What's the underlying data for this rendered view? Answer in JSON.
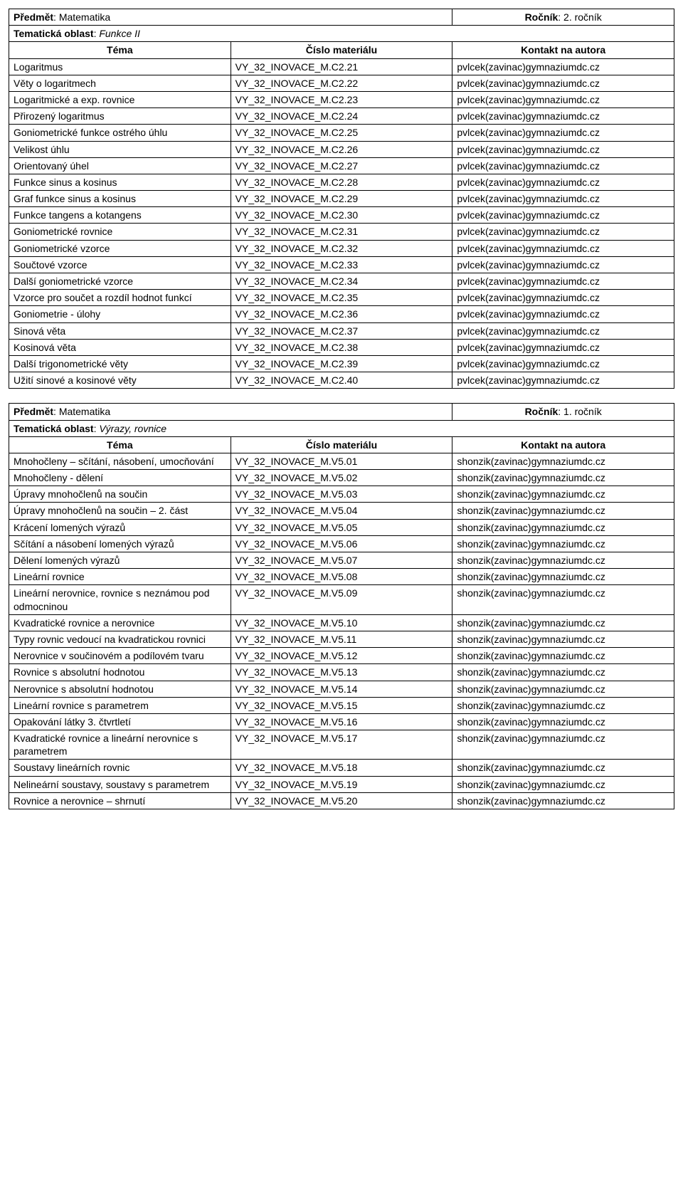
{
  "tables": [
    {
      "predmet_label": "Předmět",
      "predmet_value": "Matematika",
      "rocnik_label": "Ročník",
      "rocnik_value": "2. ročník",
      "oblast_label": "Tematická oblast",
      "oblast_value": "Funkce II",
      "header_tema": "Téma",
      "header_cislo": "Číslo materiálu",
      "header_kontakt": "Kontakt na autora",
      "rows": [
        {
          "tema": "Logaritmus",
          "cislo": "VY_32_INOVACE_M.C2.21",
          "kontakt": "pvlcek(zavinac)gymnaziumdc.cz"
        },
        {
          "tema": "Věty o logaritmech",
          "cislo": "VY_32_INOVACE_M.C2.22",
          "kontakt": "pvlcek(zavinac)gymnaziumdc.cz"
        },
        {
          "tema": "Logaritmické a exp. rovnice",
          "cislo": "VY_32_INOVACE_M.C2.23",
          "kontakt": "pvlcek(zavinac)gymnaziumdc.cz"
        },
        {
          "tema": "Přirozený logaritmus",
          "cislo": "VY_32_INOVACE_M.C2.24",
          "kontakt": "pvlcek(zavinac)gymnaziumdc.cz"
        },
        {
          "tema": "Goniometrické funkce ostrého úhlu",
          "cislo": "VY_32_INOVACE_M.C2.25",
          "kontakt": "pvlcek(zavinac)gymnaziumdc.cz"
        },
        {
          "tema": "Velikost úhlu",
          "cislo": "VY_32_INOVACE_M.C2.26",
          "kontakt": "pvlcek(zavinac)gymnaziumdc.cz"
        },
        {
          "tema": "Orientovaný úhel",
          "cislo": "VY_32_INOVACE_M.C2.27",
          "kontakt": "pvlcek(zavinac)gymnaziumdc.cz"
        },
        {
          "tema": "Funkce sinus a kosinus",
          "cislo": "VY_32_INOVACE_M.C2.28",
          "kontakt": "pvlcek(zavinac)gymnaziumdc.cz"
        },
        {
          "tema": "Graf funkce sinus a kosinus",
          "cislo": "VY_32_INOVACE_M.C2.29",
          "kontakt": "pvlcek(zavinac)gymnaziumdc.cz"
        },
        {
          "tema": "Funkce tangens a kotangens",
          "cislo": "VY_32_INOVACE_M.C2.30",
          "kontakt": "pvlcek(zavinac)gymnaziumdc.cz"
        },
        {
          "tema": "Goniometrické rovnice",
          "cislo": "VY_32_INOVACE_M.C2.31",
          "kontakt": "pvlcek(zavinac)gymnaziumdc.cz"
        },
        {
          "tema": "Goniometrické vzorce",
          "cislo": "VY_32_INOVACE_M.C2.32",
          "kontakt": "pvlcek(zavinac)gymnaziumdc.cz"
        },
        {
          "tema": "Součtové vzorce",
          "cislo": "VY_32_INOVACE_M.C2.33",
          "kontakt": "pvlcek(zavinac)gymnaziumdc.cz"
        },
        {
          "tema": "Další goniometrické vzorce",
          "cislo": "VY_32_INOVACE_M.C2.34",
          "kontakt": "pvlcek(zavinac)gymnaziumdc.cz"
        },
        {
          "tema": "Vzorce pro součet a rozdíl hodnot funkcí",
          "cislo": "VY_32_INOVACE_M.C2.35",
          "kontakt": "pvlcek(zavinac)gymnaziumdc.cz"
        },
        {
          "tema": "Goniometrie - úlohy",
          "cislo": "VY_32_INOVACE_M.C2.36",
          "kontakt": "pvlcek(zavinac)gymnaziumdc.cz"
        },
        {
          "tema": "Sinová věta",
          "cislo": "VY_32_INOVACE_M.C2.37",
          "kontakt": "pvlcek(zavinac)gymnaziumdc.cz"
        },
        {
          "tema": "Kosinová věta",
          "cislo": "VY_32_INOVACE_M.C2.38",
          "kontakt": "pvlcek(zavinac)gymnaziumdc.cz"
        },
        {
          "tema": "Další trigonometrické věty",
          "cislo": "VY_32_INOVACE_M.C2.39",
          "kontakt": "pvlcek(zavinac)gymnaziumdc.cz"
        },
        {
          "tema": "Užití sinové a kosinové věty",
          "cislo": "VY_32_INOVACE_M.C2.40",
          "kontakt": "pvlcek(zavinac)gymnaziumdc.cz"
        }
      ]
    },
    {
      "predmet_label": "Předmět",
      "predmet_value": "Matematika",
      "rocnik_label": "Ročník",
      "rocnik_value": "1. ročník",
      "oblast_label": "Tematická oblast",
      "oblast_value": "Výrazy, rovnice",
      "header_tema": "Téma",
      "header_cislo": "Číslo materiálu",
      "header_kontakt": "Kontakt na autora",
      "rows": [
        {
          "tema": "Mnohočleny – sčítání, násobení, umocňování",
          "cislo": "VY_32_INOVACE_M.V5.01",
          "kontakt": "shonzik(zavinac)gymnaziumdc.cz"
        },
        {
          "tema": "Mnohočleny - dělení",
          "cislo": "VY_32_INOVACE_M.V5.02",
          "kontakt": "shonzik(zavinac)gymnaziumdc.cz"
        },
        {
          "tema": "Úpravy mnohočlenů na součin",
          "cislo": "VY_32_INOVACE_M.V5.03",
          "kontakt": "shonzik(zavinac)gymnaziumdc.cz"
        },
        {
          "tema": "Úpravy mnohočlenů na součin – 2. část",
          "cislo": "VY_32_INOVACE_M.V5.04",
          "kontakt": "shonzik(zavinac)gymnaziumdc.cz"
        },
        {
          "tema": "Krácení lomených výrazů",
          "cislo": "VY_32_INOVACE_M.V5.05",
          "kontakt": "shonzik(zavinac)gymnaziumdc.cz"
        },
        {
          "tema": "Sčítání a násobení lomených výrazů",
          "cislo": "VY_32_INOVACE_M.V5.06",
          "kontakt": "shonzik(zavinac)gymnaziumdc.cz"
        },
        {
          "tema": "Dělení lomených výrazů",
          "cislo": "VY_32_INOVACE_M.V5.07",
          "kontakt": "shonzik(zavinac)gymnaziumdc.cz"
        },
        {
          "tema": "Lineární rovnice",
          "cislo": "VY_32_INOVACE_M.V5.08",
          "kontakt": "shonzik(zavinac)gymnaziumdc.cz"
        },
        {
          "tema": "Lineární nerovnice, rovnice s neznámou pod odmocninou",
          "cislo": "VY_32_INOVACE_M.V5.09",
          "kontakt": "shonzik(zavinac)gymnaziumdc.cz"
        },
        {
          "tema": "Kvadratické rovnice a nerovnice",
          "cislo": "VY_32_INOVACE_M.V5.10",
          "kontakt": "shonzik(zavinac)gymnaziumdc.cz"
        },
        {
          "tema": "Typy rovnic vedoucí na kvadratickou rovnici",
          "cislo": "VY_32_INOVACE_M.V5.11",
          "kontakt": "shonzik(zavinac)gymnaziumdc.cz"
        },
        {
          "tema": "Nerovnice v součinovém a podílovém tvaru",
          "cislo": "VY_32_INOVACE_M.V5.12",
          "kontakt": "shonzik(zavinac)gymnaziumdc.cz"
        },
        {
          "tema": "Rovnice s absolutní hodnotou",
          "cislo": "VY_32_INOVACE_M.V5.13",
          "kontakt": "shonzik(zavinac)gymnaziumdc.cz"
        },
        {
          "tema": "Nerovnice s absolutní hodnotou",
          "cislo": "VY_32_INOVACE_M.V5.14",
          "kontakt": "shonzik(zavinac)gymnaziumdc.cz"
        },
        {
          "tema": "Lineární rovnice s parametrem",
          "cislo": "VY_32_INOVACE_M.V5.15",
          "kontakt": "shonzik(zavinac)gymnaziumdc.cz"
        },
        {
          "tema": "Opakování látky 3. čtvrtletí",
          "cislo": "VY_32_INOVACE_M.V5.16",
          "kontakt": "shonzik(zavinac)gymnaziumdc.cz"
        },
        {
          "tema": "Kvadratické rovnice a lineární nerovnice s parametrem",
          "cislo": "VY_32_INOVACE_M.V5.17",
          "kontakt": "shonzik(zavinac)gymnaziumdc.cz"
        },
        {
          "tema": "Soustavy lineárních rovnic",
          "cislo": "VY_32_INOVACE_M.V5.18",
          "kontakt": "shonzik(zavinac)gymnaziumdc.cz"
        },
        {
          "tema": "Nelineární soustavy, soustavy s parametrem",
          "cislo": "VY_32_INOVACE_M.V5.19",
          "kontakt": "shonzik(zavinac)gymnaziumdc.cz"
        },
        {
          "tema": "Rovnice a nerovnice – shrnutí",
          "cislo": "VY_32_INOVACE_M.V5.20",
          "kontakt": "shonzik(zavinac)gymnaziumdc.cz"
        }
      ]
    }
  ]
}
